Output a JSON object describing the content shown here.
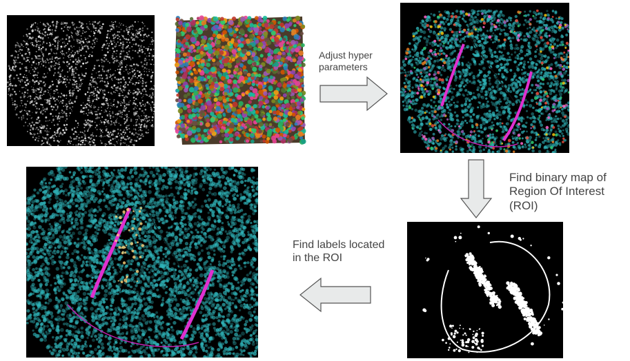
{
  "steps": {
    "adjust_label": "Adjust hyper\nparameters",
    "binary_map_label": "Find binary map of\nRegion Of Interest\n(ROI)",
    "find_labels_label": "Find labels located\nin the ROI"
  },
  "panels": [
    {
      "name": "grayscale-nuclei-image"
    },
    {
      "name": "segmentation-label-map"
    },
    {
      "name": "segmentation-overlay-image"
    },
    {
      "name": "roi-binary-mask"
    },
    {
      "name": "roi-labels-overlay-image"
    }
  ],
  "colors": {
    "nuclei": "#2fb3b8",
    "roi_marker": "#e030d0",
    "arrow_fill": "#e8eaea",
    "arrow_stroke": "#555555",
    "text": "#444444"
  }
}
